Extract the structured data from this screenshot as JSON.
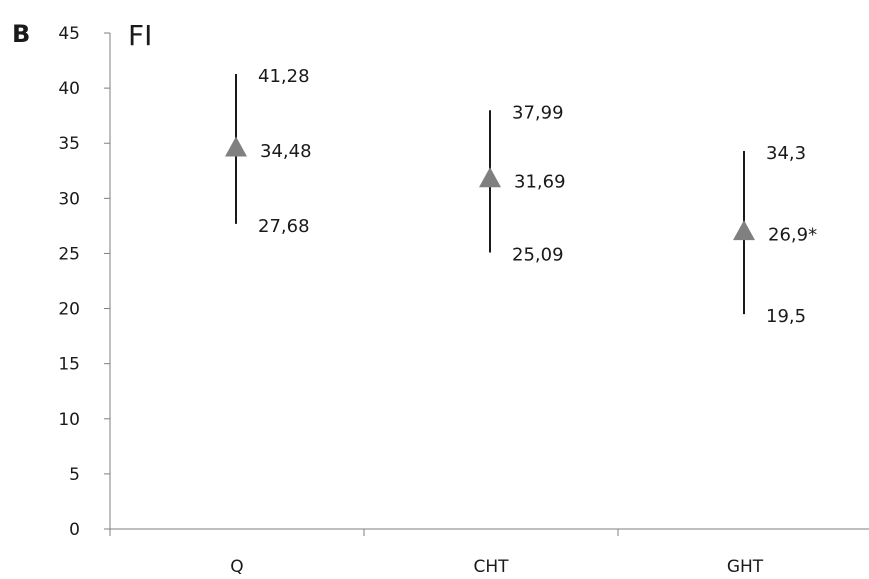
{
  "chart_data": {
    "type": "scatter",
    "panel_label": "B",
    "title": "FI",
    "categories": [
      "Q",
      "CHT",
      "GHT"
    ],
    "series": [
      {
        "values": [
          34.48,
          31.69,
          26.9
        ],
        "value_labels": [
          "34,48",
          "31,69",
          "26,9*"
        ],
        "upper": [
          41.28,
          37.99,
          34.3
        ],
        "upper_labels": [
          "41,28",
          "37,99",
          "34,3"
        ],
        "lower": [
          27.68,
          25.09,
          19.5
        ],
        "lower_labels": [
          "27,68",
          "25,09",
          "19,5"
        ],
        "marker": "triangle",
        "marker_color": "#808080",
        "error_bar_color": "#1a1a1a"
      }
    ],
    "yticks": [
      0,
      5,
      10,
      15,
      20,
      25,
      30,
      35,
      40,
      45
    ],
    "ylim": [
      0,
      45
    ],
    "xlabel": "",
    "ylabel": "",
    "grid": false,
    "legend": "none"
  }
}
